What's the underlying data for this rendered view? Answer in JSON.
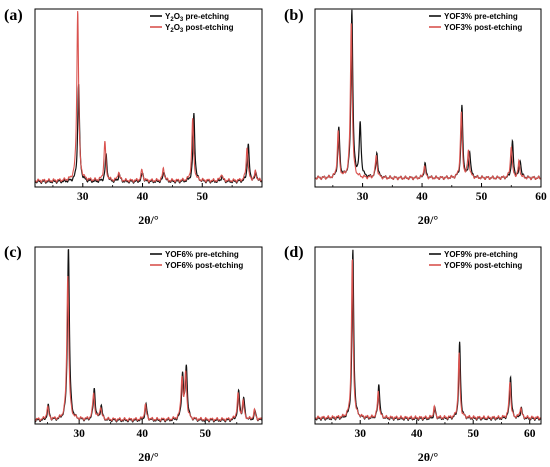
{
  "colors": {
    "pre": "#111111",
    "post": "#d9534f",
    "frame": "#000000",
    "background": "#ffffff"
  },
  "chart_data": [
    {
      "panel": "(a)",
      "type": "line",
      "xlabel": "2θ/°",
      "xlim": [
        22,
        60
      ],
      "ylim": [
        0,
        1
      ],
      "xticks": [
        30,
        40,
        50
      ],
      "yticks": [],
      "legend_position": "top-right",
      "series": [
        {
          "name": "Y₂O₃ pre-etching",
          "label_plain": "Y2O3 pre-etching",
          "color": "#111111",
          "baseline": 0.03,
          "peaks": [
            [
              29.3,
              0.55
            ],
            [
              33.9,
              0.15
            ],
            [
              36.1,
              0.04
            ],
            [
              40.0,
              0.05
            ],
            [
              43.6,
              0.06
            ],
            [
              48.6,
              0.38
            ],
            [
              53.3,
              0.03
            ],
            [
              57.7,
              0.21
            ],
            [
              59.0,
              0.05
            ]
          ]
        },
        {
          "name": "Y₂O₃ post-etching",
          "label_plain": "Y2O3 post-etching",
          "color": "#d9534f",
          "baseline": 0.035,
          "peaks": [
            [
              29.15,
              0.96
            ],
            [
              33.7,
              0.22
            ],
            [
              36.0,
              0.05
            ],
            [
              39.9,
              0.06
            ],
            [
              43.5,
              0.07
            ],
            [
              48.4,
              0.35
            ],
            [
              53.2,
              0.04
            ],
            [
              57.5,
              0.19
            ],
            [
              58.9,
              0.05
            ]
          ]
        }
      ]
    },
    {
      "panel": "(b)",
      "type": "line",
      "xlabel": "2θ/°",
      "xlim": [
        22,
        60
      ],
      "ylim": [
        0,
        1
      ],
      "xticks": [
        30,
        40,
        50,
        60
      ],
      "yticks": [],
      "legend_position": "top-right",
      "series": [
        {
          "name": "YOF3% pre-etching",
          "color": "#111111",
          "baseline": 0.05,
          "peaks": [
            [
              26.0,
              0.28
            ],
            [
              28.2,
              0.95
            ],
            [
              29.6,
              0.3
            ],
            [
              32.4,
              0.14
            ],
            [
              40.5,
              0.08
            ],
            [
              46.7,
              0.4
            ],
            [
              48.0,
              0.15
            ],
            [
              55.2,
              0.2
            ],
            [
              56.5,
              0.1
            ]
          ]
        },
        {
          "name": "YOF3% post-etching",
          "color": "#d9534f",
          "baseline": 0.05,
          "peaks": [
            [
              25.9,
              0.26
            ],
            [
              28.1,
              0.88
            ],
            [
              32.3,
              0.13
            ],
            [
              40.4,
              0.07
            ],
            [
              46.6,
              0.37
            ],
            [
              47.8,
              0.15
            ],
            [
              55.0,
              0.18
            ],
            [
              56.3,
              0.09
            ]
          ]
        }
      ]
    },
    {
      "panel": "(c)",
      "type": "line",
      "xlabel": "2θ/°",
      "xlim": [
        23,
        59
      ],
      "ylim": [
        0,
        1
      ],
      "xticks": [
        30,
        40,
        50
      ],
      "yticks": [],
      "legend_position": "top-right",
      "series": [
        {
          "name": "YOF6% pre-etching",
          "color": "#111111",
          "baseline": 0.02,
          "peaks": [
            [
              25.1,
              0.08
            ],
            [
              28.3,
              0.98
            ],
            [
              32.4,
              0.18
            ],
            [
              33.5,
              0.08
            ],
            [
              40.6,
              0.09
            ],
            [
              46.4,
              0.25
            ],
            [
              47.0,
              0.3
            ],
            [
              55.3,
              0.16
            ],
            [
              56.1,
              0.12
            ],
            [
              57.9,
              0.05
            ]
          ]
        },
        {
          "name": "YOF6% post-etching",
          "color": "#d9534f",
          "baseline": 0.025,
          "peaks": [
            [
              25.0,
              0.07
            ],
            [
              28.2,
              0.82
            ],
            [
              32.3,
              0.15
            ],
            [
              33.4,
              0.07
            ],
            [
              40.5,
              0.08
            ],
            [
              46.3,
              0.23
            ],
            [
              46.9,
              0.26
            ],
            [
              55.2,
              0.14
            ],
            [
              56.0,
              0.1
            ],
            [
              57.8,
              0.05
            ]
          ]
        }
      ]
    },
    {
      "panel": "(d)",
      "type": "line",
      "xlabel": "2θ/°",
      "xlim": [
        22,
        62
      ],
      "ylim": [
        0,
        1
      ],
      "xticks": [
        30,
        40,
        50,
        60
      ],
      "yticks": [],
      "legend_position": "top-right",
      "series": [
        {
          "name": "YOF9% pre-etching",
          "color": "#111111",
          "baseline": 0.03,
          "peaks": [
            [
              28.7,
              0.95
            ],
            [
              33.3,
              0.2
            ],
            [
              43.2,
              0.06
            ],
            [
              47.6,
              0.43
            ],
            [
              56.6,
              0.24
            ],
            [
              58.5,
              0.06
            ]
          ]
        },
        {
          "name": "YOF9% post-etching",
          "color": "#d9534f",
          "baseline": 0.035,
          "peaks": [
            [
              28.6,
              0.9
            ],
            [
              33.2,
              0.15
            ],
            [
              43.1,
              0.06
            ],
            [
              47.5,
              0.36
            ],
            [
              56.5,
              0.21
            ],
            [
              58.4,
              0.06
            ]
          ]
        }
      ]
    }
  ]
}
